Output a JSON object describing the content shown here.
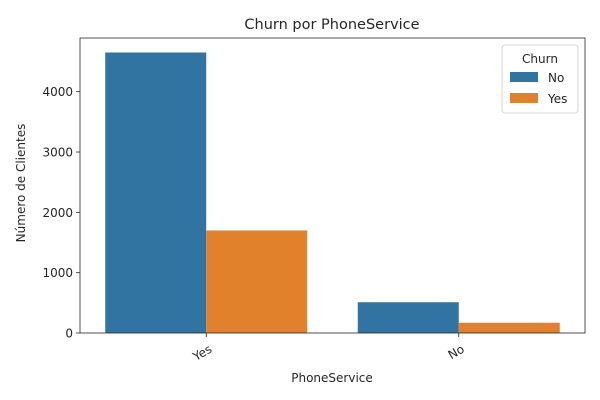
{
  "chart_data": {
    "type": "bar",
    "title": "Churn por PhoneService",
    "xlabel": "PhoneService",
    "ylabel": "Número de Clientes",
    "categories": [
      "Yes",
      "No"
    ],
    "series": [
      {
        "name": "No",
        "color": "#3274a1",
        "values": [
          4650,
          510
        ]
      },
      {
        "name": "Yes",
        "color": "#e1812c",
        "values": [
          1700,
          170
        ]
      }
    ],
    "ylim": [
      0,
      4890
    ],
    "yticks": [
      0,
      1000,
      2000,
      3000,
      4000
    ],
    "x_tick_rotation": 30,
    "grid": false,
    "legend": {
      "title": "Churn",
      "placement": "top-right"
    }
  }
}
